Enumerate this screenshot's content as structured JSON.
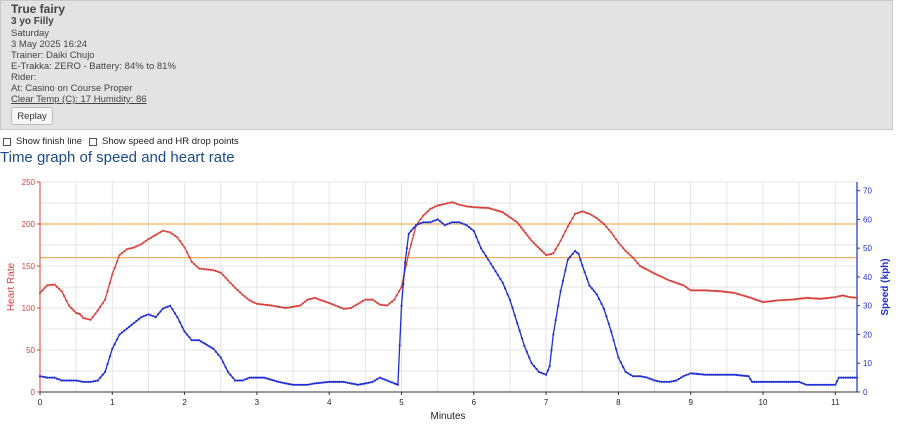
{
  "horse": {
    "name": "True fairy",
    "description": "3 yo Filly",
    "day": "Saturday",
    "datetime": "3 May 2025 16:24",
    "trainer": "Trainer: Daiki Chujo",
    "etrakka": "E-Trakka: ZERO - Battery: 84% to 81%",
    "rider": "Rider:",
    "location": "At: Casino on Course Proper",
    "conditions": "Clear Temp (C): 17 Humidity: 86"
  },
  "buttons": {
    "replay": "Replay"
  },
  "options": {
    "show_finish_line": "Show finish line",
    "show_drop_points": "Show speed and HR drop points"
  },
  "colors": {
    "heart_rate": "#d9423a",
    "speed": "#1f2fd1",
    "threshold": "#f0b060",
    "grid": "#e4e4e4"
  },
  "chart_data": {
    "type": "line",
    "title": "Time graph of speed and heart rate",
    "xlabel": "Minutes",
    "ylabel_left": "Heart Rate",
    "ylabel_right": "Speed (kph)",
    "xlim": [
      0,
      11.3
    ],
    "ylim_left": [
      0,
      250
    ],
    "ylim_right": [
      0,
      73
    ],
    "x_ticks": [
      0,
      1,
      2,
      3,
      4,
      5,
      6,
      7,
      8,
      9,
      10,
      11
    ],
    "y_left_ticks": [
      0,
      50,
      100,
      150,
      200,
      250
    ],
    "y_right_ticks": [
      0,
      10,
      20,
      30,
      40,
      50,
      60,
      70
    ],
    "grid": true,
    "reference_lines_hr": [
      200,
      160
    ],
    "series": [
      {
        "axis": "left",
        "points": [
          [
            0,
            118
          ],
          [
            0.1,
            127
          ],
          [
            0.2,
            128
          ],
          [
            0.3,
            120
          ],
          [
            0.4,
            103
          ],
          [
            0.5,
            94
          ],
          [
            0.55,
            93
          ],
          [
            0.6,
            88
          ],
          [
            0.7,
            86
          ],
          [
            0.8,
            97
          ],
          [
            0.9,
            110
          ],
          [
            1.0,
            140
          ],
          [
            1.1,
            163
          ],
          [
            1.2,
            170
          ],
          [
            1.3,
            172
          ],
          [
            1.4,
            176
          ],
          [
            1.5,
            182
          ],
          [
            1.6,
            187
          ],
          [
            1.7,
            192
          ],
          [
            1.8,
            190
          ],
          [
            1.9,
            184
          ],
          [
            2.0,
            172
          ],
          [
            2.1,
            155
          ],
          [
            2.2,
            147
          ],
          [
            2.3,
            146
          ],
          [
            2.4,
            145
          ],
          [
            2.5,
            142
          ],
          [
            2.6,
            133
          ],
          [
            2.7,
            124
          ],
          [
            2.8,
            116
          ],
          [
            2.9,
            109
          ],
          [
            3.0,
            105
          ],
          [
            3.2,
            103
          ],
          [
            3.4,
            100
          ],
          [
            3.6,
            103
          ],
          [
            3.7,
            110
          ],
          [
            3.8,
            112
          ],
          [
            4.0,
            106
          ],
          [
            4.2,
            99
          ],
          [
            4.3,
            100
          ],
          [
            4.4,
            105
          ],
          [
            4.5,
            110
          ],
          [
            4.6,
            110
          ],
          [
            4.7,
            104
          ],
          [
            4.8,
            103
          ],
          [
            4.9,
            110
          ],
          [
            5.0,
            125
          ],
          [
            5.1,
            165
          ],
          [
            5.2,
            198
          ],
          [
            5.3,
            210
          ],
          [
            5.4,
            218
          ],
          [
            5.5,
            222
          ],
          [
            5.6,
            224
          ],
          [
            5.7,
            226
          ],
          [
            5.8,
            223
          ],
          [
            5.9,
            221
          ],
          [
            6.0,
            220
          ],
          [
            6.2,
            219
          ],
          [
            6.4,
            214
          ],
          [
            6.6,
            202
          ],
          [
            6.8,
            180
          ],
          [
            7.0,
            163
          ],
          [
            7.1,
            165
          ],
          [
            7.2,
            180
          ],
          [
            7.3,
            197
          ],
          [
            7.4,
            212
          ],
          [
            7.5,
            215
          ],
          [
            7.6,
            212
          ],
          [
            7.7,
            207
          ],
          [
            7.8,
            200
          ],
          [
            7.9,
            190
          ],
          [
            8.0,
            178
          ],
          [
            8.1,
            168
          ],
          [
            8.2,
            160
          ],
          [
            8.3,
            150
          ],
          [
            8.5,
            141
          ],
          [
            8.7,
            133
          ],
          [
            8.9,
            127
          ],
          [
            9.0,
            121
          ],
          [
            9.2,
            121
          ],
          [
            9.4,
            120
          ],
          [
            9.6,
            118
          ],
          [
            9.8,
            113
          ],
          [
            10.0,
            107
          ],
          [
            10.2,
            109
          ],
          [
            10.4,
            110
          ],
          [
            10.6,
            112
          ],
          [
            10.8,
            111
          ],
          [
            11.0,
            113
          ],
          [
            11.1,
            115
          ],
          [
            11.2,
            113
          ],
          [
            11.3,
            112
          ]
        ]
      },
      {
        "axis": "right",
        "points": [
          [
            0,
            5.5
          ],
          [
            0.1,
            5
          ],
          [
            0.2,
            5
          ],
          [
            0.3,
            4
          ],
          [
            0.4,
            4
          ],
          [
            0.5,
            4
          ],
          [
            0.6,
            3.5
          ],
          [
            0.7,
            3.5
          ],
          [
            0.8,
            4
          ],
          [
            0.9,
            7
          ],
          [
            1.0,
            15
          ],
          [
            1.1,
            20
          ],
          [
            1.2,
            22
          ],
          [
            1.3,
            24
          ],
          [
            1.4,
            26
          ],
          [
            1.5,
            27
          ],
          [
            1.6,
            26
          ],
          [
            1.7,
            29
          ],
          [
            1.8,
            30
          ],
          [
            1.9,
            26
          ],
          [
            2.0,
            21
          ],
          [
            2.1,
            18
          ],
          [
            2.2,
            18
          ],
          [
            2.4,
            15
          ],
          [
            2.5,
            12
          ],
          [
            2.6,
            7
          ],
          [
            2.7,
            4
          ],
          [
            2.8,
            4
          ],
          [
            2.9,
            5
          ],
          [
            3.1,
            5
          ],
          [
            3.3,
            3.5
          ],
          [
            3.5,
            2.5
          ],
          [
            3.7,
            2.5
          ],
          [
            3.8,
            3
          ],
          [
            4.0,
            3.5
          ],
          [
            4.2,
            3.5
          ],
          [
            4.4,
            2.5
          ],
          [
            4.6,
            3.5
          ],
          [
            4.7,
            5
          ],
          [
            4.8,
            4
          ],
          [
            4.9,
            3
          ],
          [
            4.95,
            2.5
          ],
          [
            5.0,
            30
          ],
          [
            5.05,
            45
          ],
          [
            5.1,
            55
          ],
          [
            5.2,
            58
          ],
          [
            5.3,
            59
          ],
          [
            5.4,
            59
          ],
          [
            5.5,
            60
          ],
          [
            5.6,
            58
          ],
          [
            5.7,
            59
          ],
          [
            5.8,
            59
          ],
          [
            5.9,
            58
          ],
          [
            6.0,
            56
          ],
          [
            6.1,
            50
          ],
          [
            6.2,
            46
          ],
          [
            6.3,
            42
          ],
          [
            6.4,
            38
          ],
          [
            6.5,
            32
          ],
          [
            6.6,
            24
          ],
          [
            6.7,
            16
          ],
          [
            6.8,
            10
          ],
          [
            6.9,
            7
          ],
          [
            7.0,
            6
          ],
          [
            7.05,
            9
          ],
          [
            7.1,
            20
          ],
          [
            7.2,
            35
          ],
          [
            7.3,
            46
          ],
          [
            7.4,
            49
          ],
          [
            7.45,
            48
          ],
          [
            7.5,
            44
          ],
          [
            7.6,
            37
          ],
          [
            7.7,
            34
          ],
          [
            7.8,
            29
          ],
          [
            7.9,
            21
          ],
          [
            8.0,
            12
          ],
          [
            8.1,
            7
          ],
          [
            8.2,
            5.5
          ],
          [
            8.3,
            5.5
          ],
          [
            8.4,
            5
          ],
          [
            8.5,
            4
          ],
          [
            8.6,
            3.5
          ],
          [
            8.7,
            3.5
          ],
          [
            8.8,
            4
          ],
          [
            8.9,
            5.5
          ],
          [
            9.0,
            6.5
          ],
          [
            9.2,
            6
          ],
          [
            9.4,
            6
          ],
          [
            9.6,
            6
          ],
          [
            9.8,
            5.5
          ],
          [
            9.85,
            3.5
          ],
          [
            10.0,
            3.5
          ],
          [
            10.5,
            3.5
          ],
          [
            10.6,
            2.5
          ],
          [
            11.0,
            2.5
          ],
          [
            11.05,
            5
          ],
          [
            11.3,
            5
          ]
        ]
      }
    ]
  }
}
